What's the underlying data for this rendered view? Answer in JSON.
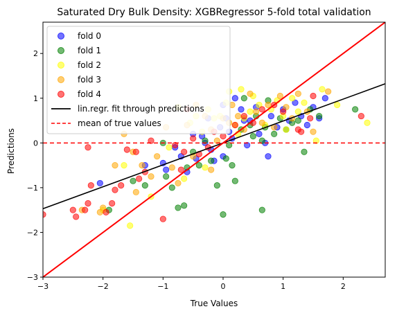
{
  "chart_data": {
    "type": "scatter",
    "title": "Saturated Dry Bulk Density: XGBRegressor 5-fold total validation",
    "xlabel": "True Values",
    "ylabel": "Predictions",
    "xlim": [
      -3.0,
      2.7
    ],
    "ylim": [
      -3.0,
      2.7
    ],
    "xticks": [
      -3,
      -2,
      -1,
      0,
      1,
      2
    ],
    "yticks": [
      -3,
      -2,
      -1,
      0,
      1,
      2
    ],
    "grid": false,
    "legend_position": "top-left",
    "series": [
      {
        "name": "fold 0",
        "color": "#0000ff",
        "points": [
          [
            -2.05,
            -0.9
          ],
          [
            -1.3,
            -0.5
          ],
          [
            -1.0,
            -0.45
          ],
          [
            -0.95,
            -0.6
          ],
          [
            -0.8,
            -0.1
          ],
          [
            -0.7,
            -0.3
          ],
          [
            -0.6,
            -0.65
          ],
          [
            -0.5,
            0.2
          ],
          [
            -0.45,
            -0.35
          ],
          [
            -0.35,
            0.15
          ],
          [
            -0.3,
            0.0
          ],
          [
            -0.2,
            -0.15
          ],
          [
            -0.15,
            -0.4
          ],
          [
            -0.05,
            0.35
          ],
          [
            0.0,
            -0.3
          ],
          [
            0.05,
            0.55
          ],
          [
            0.1,
            0.25
          ],
          [
            0.15,
            0.1
          ],
          [
            0.2,
            1.0
          ],
          [
            0.3,
            0.75
          ],
          [
            0.4,
            -0.05
          ],
          [
            0.45,
            0.5
          ],
          [
            0.55,
            0.8
          ],
          [
            0.6,
            0.2
          ],
          [
            0.7,
            0.0
          ],
          [
            0.8,
            0.6
          ],
          [
            0.9,
            0.35
          ],
          [
            1.0,
            0.75
          ],
          [
            1.1,
            0.5
          ],
          [
            1.2,
            0.9
          ],
          [
            1.3,
            0.6
          ],
          [
            1.4,
            0.4
          ],
          [
            1.5,
            0.8
          ],
          [
            1.6,
            0.55
          ],
          [
            1.7,
            1.0
          ],
          [
            -0.25,
            0.55
          ],
          [
            0.75,
            -0.3
          ],
          [
            0.35,
            0.5
          ],
          [
            0.0,
            0.85
          ]
        ]
      },
      {
        "name": "fold 1",
        "color": "#008000",
        "points": [
          [
            -1.9,
            -1.5
          ],
          [
            -1.5,
            -0.85
          ],
          [
            -1.3,
            -0.95
          ],
          [
            -0.95,
            -0.75
          ],
          [
            -0.85,
            -1.0
          ],
          [
            -0.75,
            -1.45
          ],
          [
            -0.65,
            -1.4
          ],
          [
            -0.6,
            -0.55
          ],
          [
            -0.5,
            -0.2
          ],
          [
            -0.4,
            -0.5
          ],
          [
            -0.3,
            0.05
          ],
          [
            -0.2,
            -0.4
          ],
          [
            -0.1,
            -0.95
          ],
          [
            0.0,
            -1.6
          ],
          [
            0.05,
            -0.35
          ],
          [
            0.1,
            -0.05
          ],
          [
            0.15,
            -0.5
          ],
          [
            0.2,
            -0.85
          ],
          [
            0.3,
            0.3
          ],
          [
            0.35,
            1.0
          ],
          [
            0.45,
            0.4
          ],
          [
            0.5,
            0.15
          ],
          [
            0.55,
            0.6
          ],
          [
            0.65,
            0.05
          ],
          [
            0.7,
            0.35
          ],
          [
            0.75,
            0.95
          ],
          [
            0.85,
            0.2
          ],
          [
            0.95,
            0.55
          ],
          [
            1.05,
            0.3
          ],
          [
            1.15,
            0.45
          ],
          [
            1.25,
            0.5
          ],
          [
            1.35,
            -0.2
          ],
          [
            1.45,
            0.75
          ],
          [
            1.6,
            0.6
          ],
          [
            2.2,
            0.75
          ],
          [
            0.65,
            -1.5
          ],
          [
            -1.0,
            0.0
          ]
        ]
      },
      {
        "name": "fold 2",
        "color": "#ffff00",
        "points": [
          [
            -1.55,
            -1.85
          ],
          [
            -1.2,
            -1.2
          ],
          [
            -0.9,
            -0.1
          ],
          [
            -0.75,
            0.8
          ],
          [
            -0.65,
            -0.8
          ],
          [
            -0.55,
            0.45
          ],
          [
            -0.45,
            0.6
          ],
          [
            -0.35,
            0.25
          ],
          [
            -0.25,
            0.75
          ],
          [
            -0.15,
            0.55
          ],
          [
            -0.05,
            0.6
          ],
          [
            0.05,
            0.9
          ],
          [
            0.1,
            1.15
          ],
          [
            0.2,
            0.4
          ],
          [
            0.25,
            0.2
          ],
          [
            0.35,
            0.55
          ],
          [
            0.45,
            0.7
          ],
          [
            0.5,
            1.05
          ],
          [
            0.6,
            0.85
          ],
          [
            0.7,
            0.4
          ],
          [
            0.8,
            0.75
          ],
          [
            0.9,
            0.95
          ],
          [
            1.0,
            0.6
          ],
          [
            1.05,
            0.3
          ],
          [
            1.15,
            1.0
          ],
          [
            1.25,
            0.7
          ],
          [
            1.35,
            0.9
          ],
          [
            1.55,
            0.05
          ],
          [
            1.65,
            1.2
          ],
          [
            1.9,
            0.85
          ],
          [
            2.4,
            0.45
          ],
          [
            -1.65,
            -0.5
          ],
          [
            -2.0,
            -1.5
          ],
          [
            -0.3,
            -0.55
          ],
          [
            0.3,
            1.2
          ]
        ]
      },
      {
        "name": "fold 3",
        "color": "#ffa500",
        "points": [
          [
            -2.35,
            -1.5
          ],
          [
            -2.0,
            -1.45
          ],
          [
            -1.8,
            -0.5
          ],
          [
            -1.65,
            0.2
          ],
          [
            -1.5,
            -0.2
          ],
          [
            -1.35,
            -0.5
          ],
          [
            -1.2,
            -0.75
          ],
          [
            -1.1,
            -0.3
          ],
          [
            -0.95,
            0.35
          ],
          [
            -0.85,
            -0.55
          ],
          [
            -0.75,
            -0.9
          ],
          [
            -0.6,
            0.4
          ],
          [
            -0.5,
            -0.3
          ],
          [
            -0.45,
            0.85
          ],
          [
            -0.3,
            0.6
          ],
          [
            -0.2,
            0.3
          ],
          [
            -0.1,
            0.05
          ],
          [
            0.0,
            0.55
          ],
          [
            0.1,
            0.45
          ],
          [
            0.15,
            0.85
          ],
          [
            0.25,
            0.6
          ],
          [
            0.35,
            0.3
          ],
          [
            0.45,
            1.1
          ],
          [
            0.55,
            0.7
          ],
          [
            0.65,
            0.45
          ],
          [
            0.75,
            0.85
          ],
          [
            0.85,
            0.35
          ],
          [
            0.95,
            1.05
          ],
          [
            1.05,
            0.8
          ],
          [
            1.15,
            0.55
          ],
          [
            1.25,
            1.1
          ],
          [
            1.4,
            0.7
          ],
          [
            1.5,
            0.25
          ],
          [
            1.75,
            1.15
          ],
          [
            -2.05,
            -1.55
          ],
          [
            -1.45,
            -1.1
          ],
          [
            -0.2,
            -0.6
          ]
        ]
      },
      {
        "name": "fold 4",
        "color": "#ff0000",
        "points": [
          [
            -3.0,
            -1.6
          ],
          [
            -2.5,
            -1.5
          ],
          [
            -2.45,
            -1.65
          ],
          [
            -2.3,
            -1.5
          ],
          [
            -2.25,
            -0.1
          ],
          [
            -2.25,
            -1.35
          ],
          [
            -2.2,
            -0.95
          ],
          [
            -1.95,
            -1.55
          ],
          [
            -1.85,
            -1.35
          ],
          [
            -1.8,
            -1.05
          ],
          [
            -1.7,
            -0.95
          ],
          [
            -1.6,
            -0.15
          ],
          [
            -1.45,
            -0.2
          ],
          [
            -1.4,
            -0.8
          ],
          [
            -1.3,
            -0.65
          ],
          [
            -1.2,
            0.05
          ],
          [
            -1.0,
            -1.7
          ],
          [
            -0.8,
            -0.05
          ],
          [
            -0.7,
            -0.6
          ],
          [
            -0.65,
            -0.2
          ],
          [
            -0.5,
            0.1
          ],
          [
            -0.4,
            -0.25
          ],
          [
            -0.25,
            -0.1
          ],
          [
            -0.15,
            0.25
          ],
          [
            0.0,
            0.15
          ],
          [
            0.2,
            0.4
          ],
          [
            0.35,
            0.6
          ],
          [
            0.5,
            0.45
          ],
          [
            0.65,
            0.75
          ],
          [
            0.85,
            0.85
          ],
          [
            1.0,
            0.7
          ],
          [
            1.25,
            0.3
          ],
          [
            1.3,
            0.25
          ],
          [
            1.45,
            0.55
          ],
          [
            1.5,
            1.05
          ],
          [
            2.3,
            0.6
          ],
          [
            2.75,
            0.85
          ],
          [
            -0.6,
            0.75
          ]
        ]
      }
    ],
    "regression_line": {
      "name": "lin.regr. fit through predictions",
      "color": "#000000",
      "slope": 0.49,
      "intercept": 0.0,
      "x_range": [
        -3.0,
        2.7
      ]
    },
    "identity_line": {
      "color": "#ff0000",
      "x_range": [
        -3.0,
        2.7
      ]
    },
    "mean_line": {
      "name": "mean of true values",
      "color": "#ff0000",
      "y": 0.0
    }
  }
}
